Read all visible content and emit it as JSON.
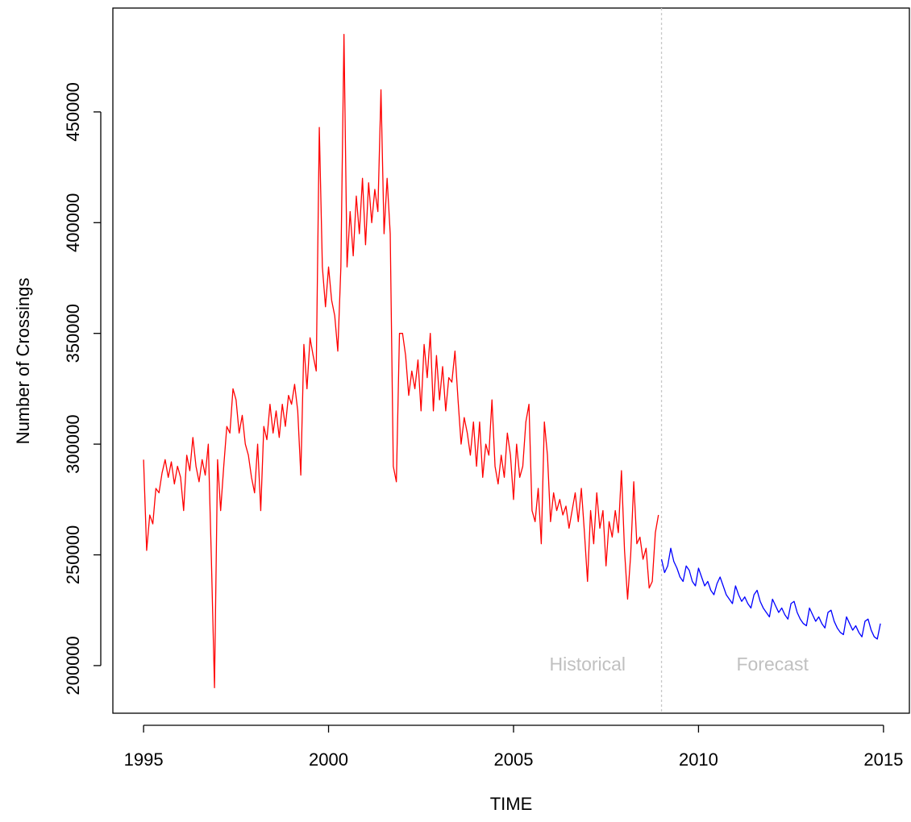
{
  "chart_data": {
    "type": "line",
    "xlabel": "TIME",
    "ylabel": "Number of Crossings",
    "xlim": [
      1994.17,
      2015.7
    ],
    "ylim": [
      178500,
      496900
    ],
    "xticks": [
      1995,
      2000,
      2005,
      2010,
      2015
    ],
    "yticks": [
      200000,
      250000,
      300000,
      350000,
      400000,
      450000
    ],
    "vline": 2009,
    "annotations": [
      {
        "text": "Historical",
        "x": 2007,
        "y": 200000
      },
      {
        "text": "Forecast",
        "x": 2012,
        "y": 200000
      }
    ],
    "series": [
      {
        "name": "Historical",
        "color": "#ff0000",
        "x": [
          1995,
          1995.083,
          1995.167,
          1995.25,
          1995.333,
          1995.417,
          1995.5,
          1995.583,
          1995.667,
          1995.75,
          1995.833,
          1995.917,
          1996,
          1996.083,
          1996.167,
          1996.25,
          1996.333,
          1996.417,
          1996.5,
          1996.583,
          1996.667,
          1996.75,
          1996.833,
          1996.917,
          1997,
          1997.083,
          1997.167,
          1997.25,
          1997.333,
          1997.417,
          1997.5,
          1997.583,
          1997.667,
          1997.75,
          1997.833,
          1997.917,
          1998,
          1998.083,
          1998.167,
          1998.25,
          1998.333,
          1998.417,
          1998.5,
          1998.583,
          1998.667,
          1998.75,
          1998.833,
          1998.917,
          1999,
          1999.083,
          1999.167,
          1999.25,
          1999.333,
          1999.417,
          1999.5,
          1999.583,
          1999.667,
          1999.75,
          1999.833,
          1999.917,
          2000,
          2000.083,
          2000.167,
          2000.25,
          2000.333,
          2000.417,
          2000.5,
          2000.583,
          2000.667,
          2000.75,
          2000.833,
          2000.917,
          2001,
          2001.083,
          2001.167,
          2001.25,
          2001.333,
          2001.417,
          2001.5,
          2001.583,
          2001.667,
          2001.75,
          2001.833,
          2001.917,
          2002,
          2002.083,
          2002.167,
          2002.25,
          2002.333,
          2002.417,
          2002.5,
          2002.583,
          2002.667,
          2002.75,
          2002.833,
          2002.917,
          2003,
          2003.083,
          2003.167,
          2003.25,
          2003.333,
          2003.417,
          2003.5,
          2003.583,
          2003.667,
          2003.75,
          2003.833,
          2003.917,
          2004,
          2004.083,
          2004.167,
          2004.25,
          2004.333,
          2004.417,
          2004.5,
          2004.583,
          2004.667,
          2004.75,
          2004.833,
          2004.917,
          2005,
          2005.083,
          2005.167,
          2005.25,
          2005.333,
          2005.417,
          2005.5,
          2005.583,
          2005.667,
          2005.75,
          2005.833,
          2005.917,
          2006,
          2006.083,
          2006.167,
          2006.25,
          2006.333,
          2006.417,
          2006.5,
          2006.583,
          2006.667,
          2006.75,
          2006.833,
          2006.917,
          2007,
          2007.083,
          2007.167,
          2007.25,
          2007.333,
          2007.417,
          2007.5,
          2007.583,
          2007.667,
          2007.75,
          2007.833,
          2007.917,
          2008,
          2008.083,
          2008.167,
          2008.25,
          2008.333,
          2008.417,
          2008.5,
          2008.583,
          2008.667,
          2008.75,
          2008.833,
          2008.917
        ],
        "values": [
          293000,
          252000,
          268000,
          264000,
          280000,
          278000,
          287000,
          293000,
          285000,
          292000,
          282000,
          290000,
          285000,
          270000,
          295000,
          288000,
          303000,
          290000,
          283000,
          293000,
          286000,
          300000,
          248000,
          190000,
          293000,
          270000,
          290000,
          308000,
          305000,
          325000,
          320000,
          305000,
          313000,
          300000,
          295000,
          285000,
          278000,
          300000,
          270000,
          308000,
          302000,
          318000,
          305000,
          315000,
          303000,
          318000,
          308000,
          322000,
          318000,
          327000,
          315000,
          286000,
          345000,
          325000,
          348000,
          340000,
          333000,
          443000,
          380000,
          362000,
          380000,
          365000,
          358000,
          342000,
          380000,
          485000,
          380000,
          405000,
          385000,
          412000,
          395000,
          420000,
          390000,
          418000,
          400000,
          415000,
          405000,
          460000,
          395000,
          420000,
          395000,
          290000,
          283000,
          350000,
          350000,
          340000,
          322000,
          333000,
          325000,
          338000,
          315000,
          345000,
          330000,
          350000,
          315000,
          340000,
          320000,
          335000,
          315000,
          330000,
          328000,
          342000,
          320000,
          300000,
          312000,
          305000,
          295000,
          310000,
          290000,
          310000,
          285000,
          300000,
          295000,
          320000,
          290000,
          282000,
          295000,
          285000,
          305000,
          295000,
          275000,
          300000,
          285000,
          290000,
          310000,
          318000,
          270000,
          265000,
          280000,
          255000,
          310000,
          295000,
          265000,
          278000,
          270000,
          275000,
          268000,
          272000,
          262000,
          270000,
          278000,
          265000,
          280000,
          260000,
          238000,
          270000,
          255000,
          278000,
          262000,
          270000,
          245000,
          265000,
          258000,
          270000,
          260000,
          288000,
          252000,
          230000,
          250000,
          283000,
          255000,
          258000,
          248000,
          253000,
          235000,
          238000,
          260000,
          268000
        ]
      },
      {
        "name": "Forecast",
        "color": "#0000ff",
        "x": [
          2009,
          2009.083,
          2009.167,
          2009.25,
          2009.333,
          2009.417,
          2009.5,
          2009.583,
          2009.667,
          2009.75,
          2009.833,
          2009.917,
          2010,
          2010.083,
          2010.167,
          2010.25,
          2010.333,
          2010.417,
          2010.5,
          2010.583,
          2010.667,
          2010.75,
          2010.833,
          2010.917,
          2011,
          2011.083,
          2011.167,
          2011.25,
          2011.333,
          2011.417,
          2011.5,
          2011.583,
          2011.667,
          2011.75,
          2011.833,
          2011.917,
          2012,
          2012.083,
          2012.167,
          2012.25,
          2012.333,
          2012.417,
          2012.5,
          2012.583,
          2012.667,
          2012.75,
          2012.833,
          2012.917,
          2013,
          2013.083,
          2013.167,
          2013.25,
          2013.333,
          2013.417,
          2013.5,
          2013.583,
          2013.667,
          2013.75,
          2013.833,
          2013.917,
          2014,
          2014.083,
          2014.167,
          2014.25,
          2014.333,
          2014.417,
          2014.5,
          2014.583,
          2014.667,
          2014.75,
          2014.833,
          2014.917
        ],
        "values": [
          248000,
          242000,
          245000,
          253000,
          247000,
          244000,
          240000,
          238000,
          245000,
          243000,
          238000,
          236000,
          244000,
          240000,
          236000,
          238000,
          234000,
          232000,
          237000,
          240000,
          236000,
          232000,
          230000,
          228000,
          236000,
          232000,
          229000,
          231000,
          228000,
          226000,
          232000,
          234000,
          229000,
          226000,
          224000,
          222000,
          230000,
          227000,
          224000,
          226000,
          223000,
          221000,
          228000,
          229000,
          224000,
          221000,
          219000,
          218000,
          226000,
          223000,
          220000,
          222000,
          219000,
          217000,
          224000,
          225000,
          220000,
          217000,
          215000,
          214000,
          222000,
          219000,
          216000,
          218000,
          215000,
          213000,
          220000,
          221000,
          216000,
          213000,
          212000,
          219000
        ]
      }
    ]
  }
}
